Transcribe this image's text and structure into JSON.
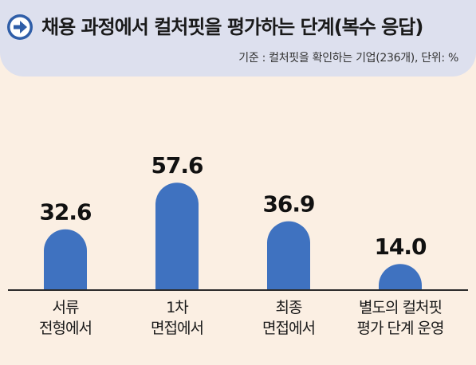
{
  "header": {
    "title": "채용 과정에서 컬처핏을 평가하는 단계(복수 응답)",
    "subtitle": "기준 : 컬처핏을 확인하는 기업(236개), 단위: %",
    "icon": "arrow-right-circle-icon"
  },
  "colors": {
    "bar": "#3f72c0",
    "baseline": "#2b2b2b",
    "background": "#fbefe3",
    "header_bg": "#dde0ee",
    "icon": "#2f5ea8"
  },
  "chart_data": {
    "type": "bar",
    "categories": [
      [
        "서류",
        "전형에서"
      ],
      [
        "1차",
        "면접에서"
      ],
      [
        "최종",
        "면접에서"
      ],
      [
        "별도의 컬처핏",
        "평가 단계 운영"
      ]
    ],
    "values": [
      32.6,
      57.6,
      36.9,
      14.0
    ],
    "value_labels": [
      "32.6",
      "57.6",
      "36.9",
      "14.0"
    ],
    "title": "채용 과정에서 컬처핏을 평가하는 단계(복수 응답)",
    "unit": "%",
    "ylim": [
      0,
      60
    ],
    "grid": false,
    "legend": "none"
  }
}
